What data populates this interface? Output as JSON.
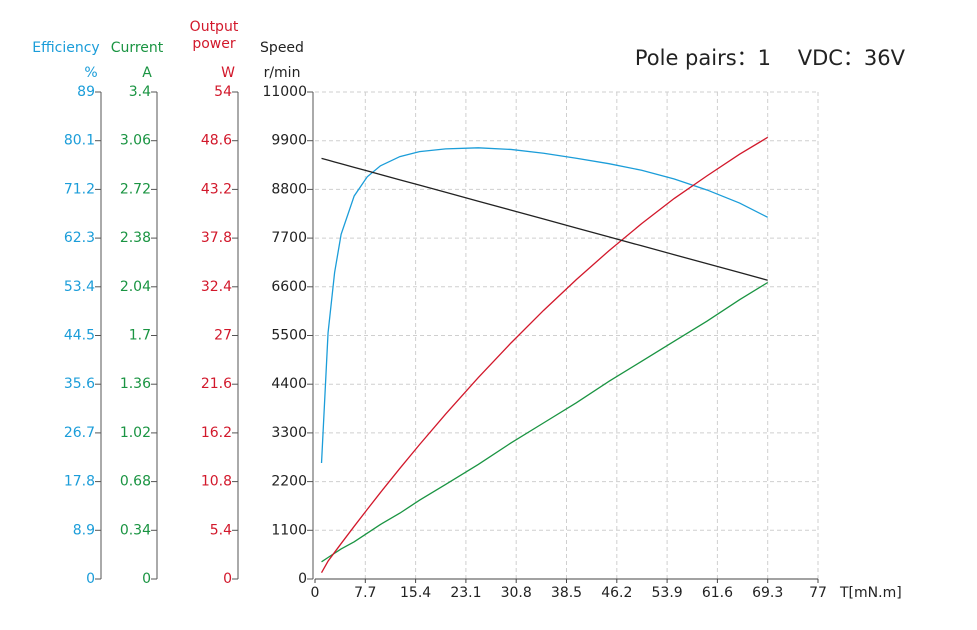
{
  "chart_data": {
    "type": "line",
    "title": "Pole pairs：1    VDC：36V",
    "x_label": "T[mN.m]",
    "x": [
      1,
      2,
      3,
      4,
      6,
      8,
      10,
      13,
      16,
      20,
      25,
      30,
      35,
      40,
      45,
      50,
      55,
      60,
      65,
      69.3
    ],
    "xlim": [
      0,
      77
    ],
    "xticks": [
      0,
      7.7,
      15.4,
      23.1,
      30.8,
      38.5,
      46.2,
      53.9,
      61.6,
      69.3,
      77
    ],
    "grid": true,
    "axes": [
      {
        "name": "Efficiency",
        "unit": "%",
        "color": "#1b9dd9",
        "ylim": [
          0,
          89
        ],
        "yticks": [
          0,
          8.9,
          17.8,
          26.7,
          35.6,
          44.5,
          53.4,
          62.3,
          71.2,
          80.1,
          89
        ],
        "values": [
          21.2,
          45,
          56,
          63,
          70,
          73.5,
          75.5,
          77.2,
          78.1,
          78.6,
          78.8,
          78.5,
          77.8,
          76.9,
          75.9,
          74.7,
          73.1,
          71.1,
          68.7,
          66.1
        ]
      },
      {
        "name": "Current",
        "unit": "A",
        "color": "#1a9442",
        "ylim": [
          0,
          3.4
        ],
        "yticks": [
          0,
          0.34,
          0.68,
          1.02,
          1.36,
          1.7,
          2.04,
          2.38,
          2.72,
          3.06,
          3.4
        ],
        "values": [
          0.12,
          0.15,
          0.18,
          0.21,
          0.26,
          0.32,
          0.38,
          0.46,
          0.55,
          0.66,
          0.8,
          0.95,
          1.09,
          1.23,
          1.38,
          1.52,
          1.66,
          1.8,
          1.95,
          2.07
        ]
      },
      {
        "name": "Output power",
        "unit": "W",
        "color": "#d2182b",
        "ylim": [
          0,
          54
        ],
        "yticks": [
          0,
          5.4,
          10.8,
          16.2,
          21.6,
          27,
          32.4,
          37.8,
          43.2,
          48.6,
          54
        ],
        "values": [
          0.7,
          1.98,
          2.96,
          3.93,
          5.84,
          7.72,
          9.57,
          12.27,
          14.9,
          18.29,
          22.34,
          26.17,
          29.79,
          33.2,
          36.4,
          39.4,
          42.2,
          44.7,
          47.1,
          48.97
        ]
      },
      {
        "name": "Speed",
        "unit": "r/min",
        "color": "#222222",
        "ylim": [
          0,
          11000
        ],
        "yticks": [
          0,
          1100,
          2200,
          3300,
          4400,
          5500,
          6600,
          7700,
          8800,
          9900,
          11000
        ],
        "values": [
          9500,
          9460,
          9419,
          9379,
          9298,
          9218,
          9137,
          9016,
          8896,
          8735,
          8533,
          8332,
          8130,
          7929,
          7727,
          7526,
          7325,
          7123,
          6922,
          6749
        ]
      }
    ]
  }
}
